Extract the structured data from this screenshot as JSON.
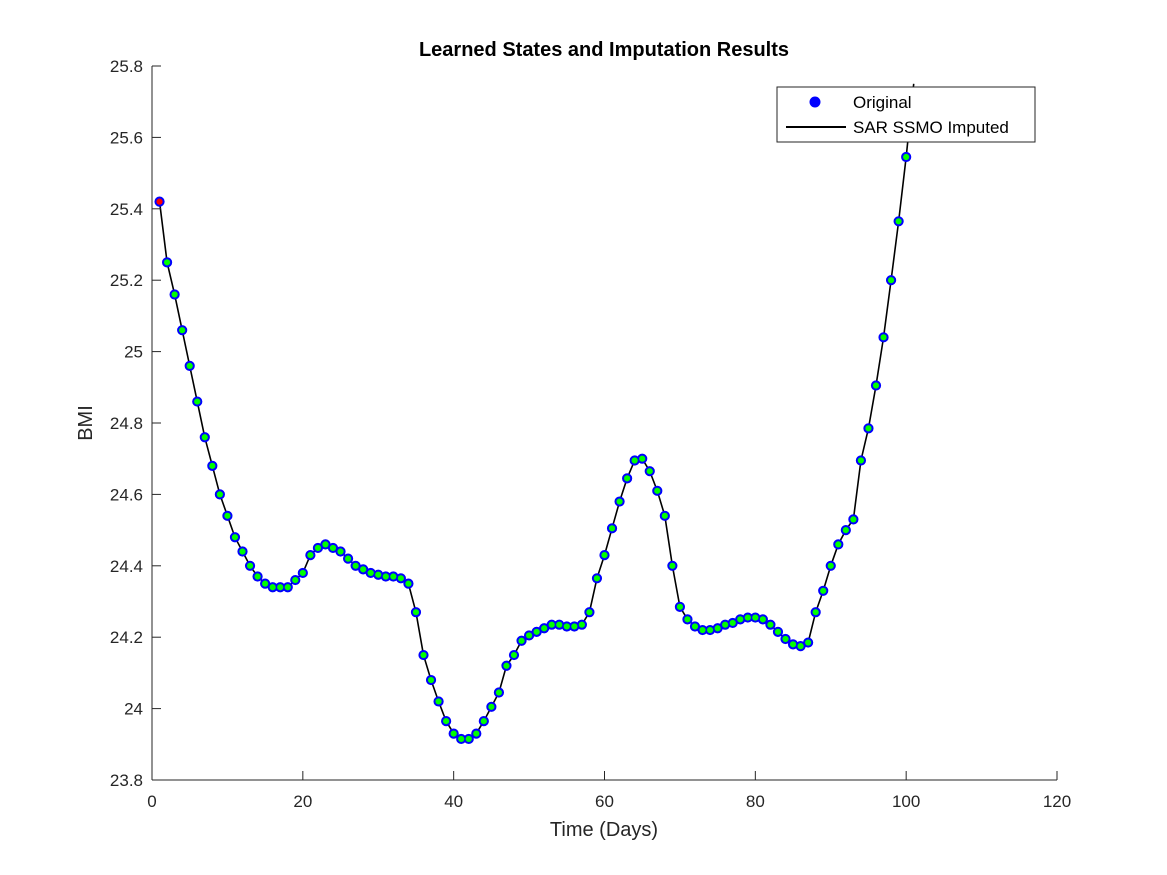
{
  "colors": {
    "original_fill": "#0000ff",
    "imputed_fill": "#00ff00",
    "first_point_fill": "#ff0000",
    "line": "#000000",
    "axis": "#262626"
  },
  "chart_data": {
    "type": "line",
    "title": "Learned States and Imputation Results",
    "xlabel": "Time (Days)",
    "ylabel": "BMI",
    "xlim": [
      0,
      120
    ],
    "ylim": [
      23.8,
      25.8
    ],
    "xticks": [
      0,
      20,
      40,
      60,
      80,
      100,
      120
    ],
    "yticks": [
      23.8,
      24,
      24.2,
      24.4,
      24.6,
      24.8,
      25,
      25.2,
      25.4,
      25.6,
      25.8
    ],
    "grid": false,
    "legend_position": "top-right",
    "legend": [
      "Original",
      "SAR SSMO Imputed"
    ],
    "series": [
      {
        "name": "Original",
        "style": "markers",
        "x": [
          1,
          2,
          3,
          4,
          5,
          6,
          7,
          8,
          9,
          10,
          11,
          12,
          13,
          14,
          15,
          16,
          17,
          18,
          19,
          20,
          21,
          22,
          23,
          24,
          25,
          26,
          27,
          28,
          29,
          30,
          31,
          32,
          33,
          34,
          35,
          36,
          37,
          38,
          39,
          40,
          41,
          42,
          43,
          44,
          45,
          46,
          47,
          48,
          49,
          50,
          51,
          52,
          53,
          54,
          55,
          56,
          57,
          58,
          59,
          60,
          61,
          62,
          63,
          64,
          65,
          66,
          67,
          68,
          69,
          70,
          71,
          72,
          73,
          74,
          75,
          76,
          77,
          78,
          79,
          80,
          81,
          82,
          83,
          84,
          85,
          86,
          87,
          88,
          89,
          90,
          91,
          92,
          93,
          94,
          95,
          96,
          97,
          98,
          99,
          100
        ],
        "y": [
          25.42,
          25.25,
          25.16,
          25.06,
          24.96,
          24.86,
          24.76,
          24.68,
          24.6,
          24.54,
          24.48,
          24.44,
          24.4,
          24.37,
          24.35,
          24.34,
          24.34,
          24.34,
          24.36,
          24.38,
          24.43,
          24.45,
          24.46,
          24.45,
          24.44,
          24.42,
          24.4,
          24.39,
          24.38,
          24.375,
          24.37,
          24.37,
          24.365,
          24.35,
          24.27,
          24.15,
          24.08,
          24.02,
          23.965,
          23.93,
          23.915,
          23.915,
          23.93,
          23.965,
          24.005,
          24.045,
          24.12,
          24.15,
          24.19,
          24.205,
          24.215,
          24.225,
          24.235,
          24.235,
          24.23,
          24.23,
          24.235,
          24.27,
          24.365,
          24.43,
          24.505,
          24.58,
          24.645,
          24.695,
          24.7,
          24.665,
          24.61,
          24.54,
          24.4,
          24.285,
          24.25,
          24.23,
          24.22,
          24.22,
          24.225,
          24.235,
          24.24,
          24.25,
          24.255,
          24.255,
          24.25,
          24.235,
          24.215,
          24.195,
          24.18,
          24.175,
          24.185,
          24.27,
          24.33,
          24.4,
          24.46,
          24.5,
          24.53,
          24.695,
          24.785,
          24.905,
          25.04,
          25.2,
          25.365,
          25.545
        ]
      },
      {
        "name": "SAR SSMO Imputed",
        "style": "line",
        "x": [
          1,
          2,
          3,
          4,
          5,
          6,
          7,
          8,
          9,
          10,
          11,
          12,
          13,
          14,
          15,
          16,
          17,
          18,
          19,
          20,
          21,
          22,
          23,
          24,
          25,
          26,
          27,
          28,
          29,
          30,
          31,
          32,
          33,
          34,
          35,
          36,
          37,
          38,
          39,
          40,
          41,
          42,
          43,
          44,
          45,
          46,
          47,
          48,
          49,
          50,
          51,
          52,
          53,
          54,
          55,
          56,
          57,
          58,
          59,
          60,
          61,
          62,
          63,
          64,
          65,
          66,
          67,
          68,
          69,
          70,
          71,
          72,
          73,
          74,
          75,
          76,
          77,
          78,
          79,
          80,
          81,
          82,
          83,
          84,
          85,
          86,
          87,
          88,
          89,
          90,
          91,
          92,
          93,
          94,
          95,
          96,
          97,
          98,
          99,
          100,
          101
        ],
        "y": [
          25.42,
          25.25,
          25.16,
          25.06,
          24.96,
          24.86,
          24.76,
          24.68,
          24.6,
          24.54,
          24.48,
          24.44,
          24.4,
          24.37,
          24.35,
          24.34,
          24.34,
          24.34,
          24.36,
          24.38,
          24.43,
          24.45,
          24.46,
          24.45,
          24.44,
          24.42,
          24.4,
          24.39,
          24.38,
          24.375,
          24.37,
          24.37,
          24.365,
          24.35,
          24.27,
          24.15,
          24.08,
          24.02,
          23.965,
          23.93,
          23.915,
          23.915,
          23.93,
          23.965,
          24.005,
          24.045,
          24.12,
          24.15,
          24.19,
          24.205,
          24.215,
          24.225,
          24.235,
          24.235,
          24.23,
          24.23,
          24.235,
          24.27,
          24.365,
          24.43,
          24.505,
          24.58,
          24.645,
          24.695,
          24.7,
          24.665,
          24.61,
          24.54,
          24.4,
          24.285,
          24.25,
          24.23,
          24.22,
          24.22,
          24.225,
          24.235,
          24.24,
          24.25,
          24.255,
          24.255,
          24.25,
          24.235,
          24.215,
          24.195,
          24.18,
          24.175,
          24.185,
          24.27,
          24.33,
          24.4,
          24.46,
          24.5,
          24.53,
          24.695,
          24.785,
          24.905,
          25.04,
          25.2,
          25.365,
          25.545,
          25.75
        ]
      }
    ]
  }
}
